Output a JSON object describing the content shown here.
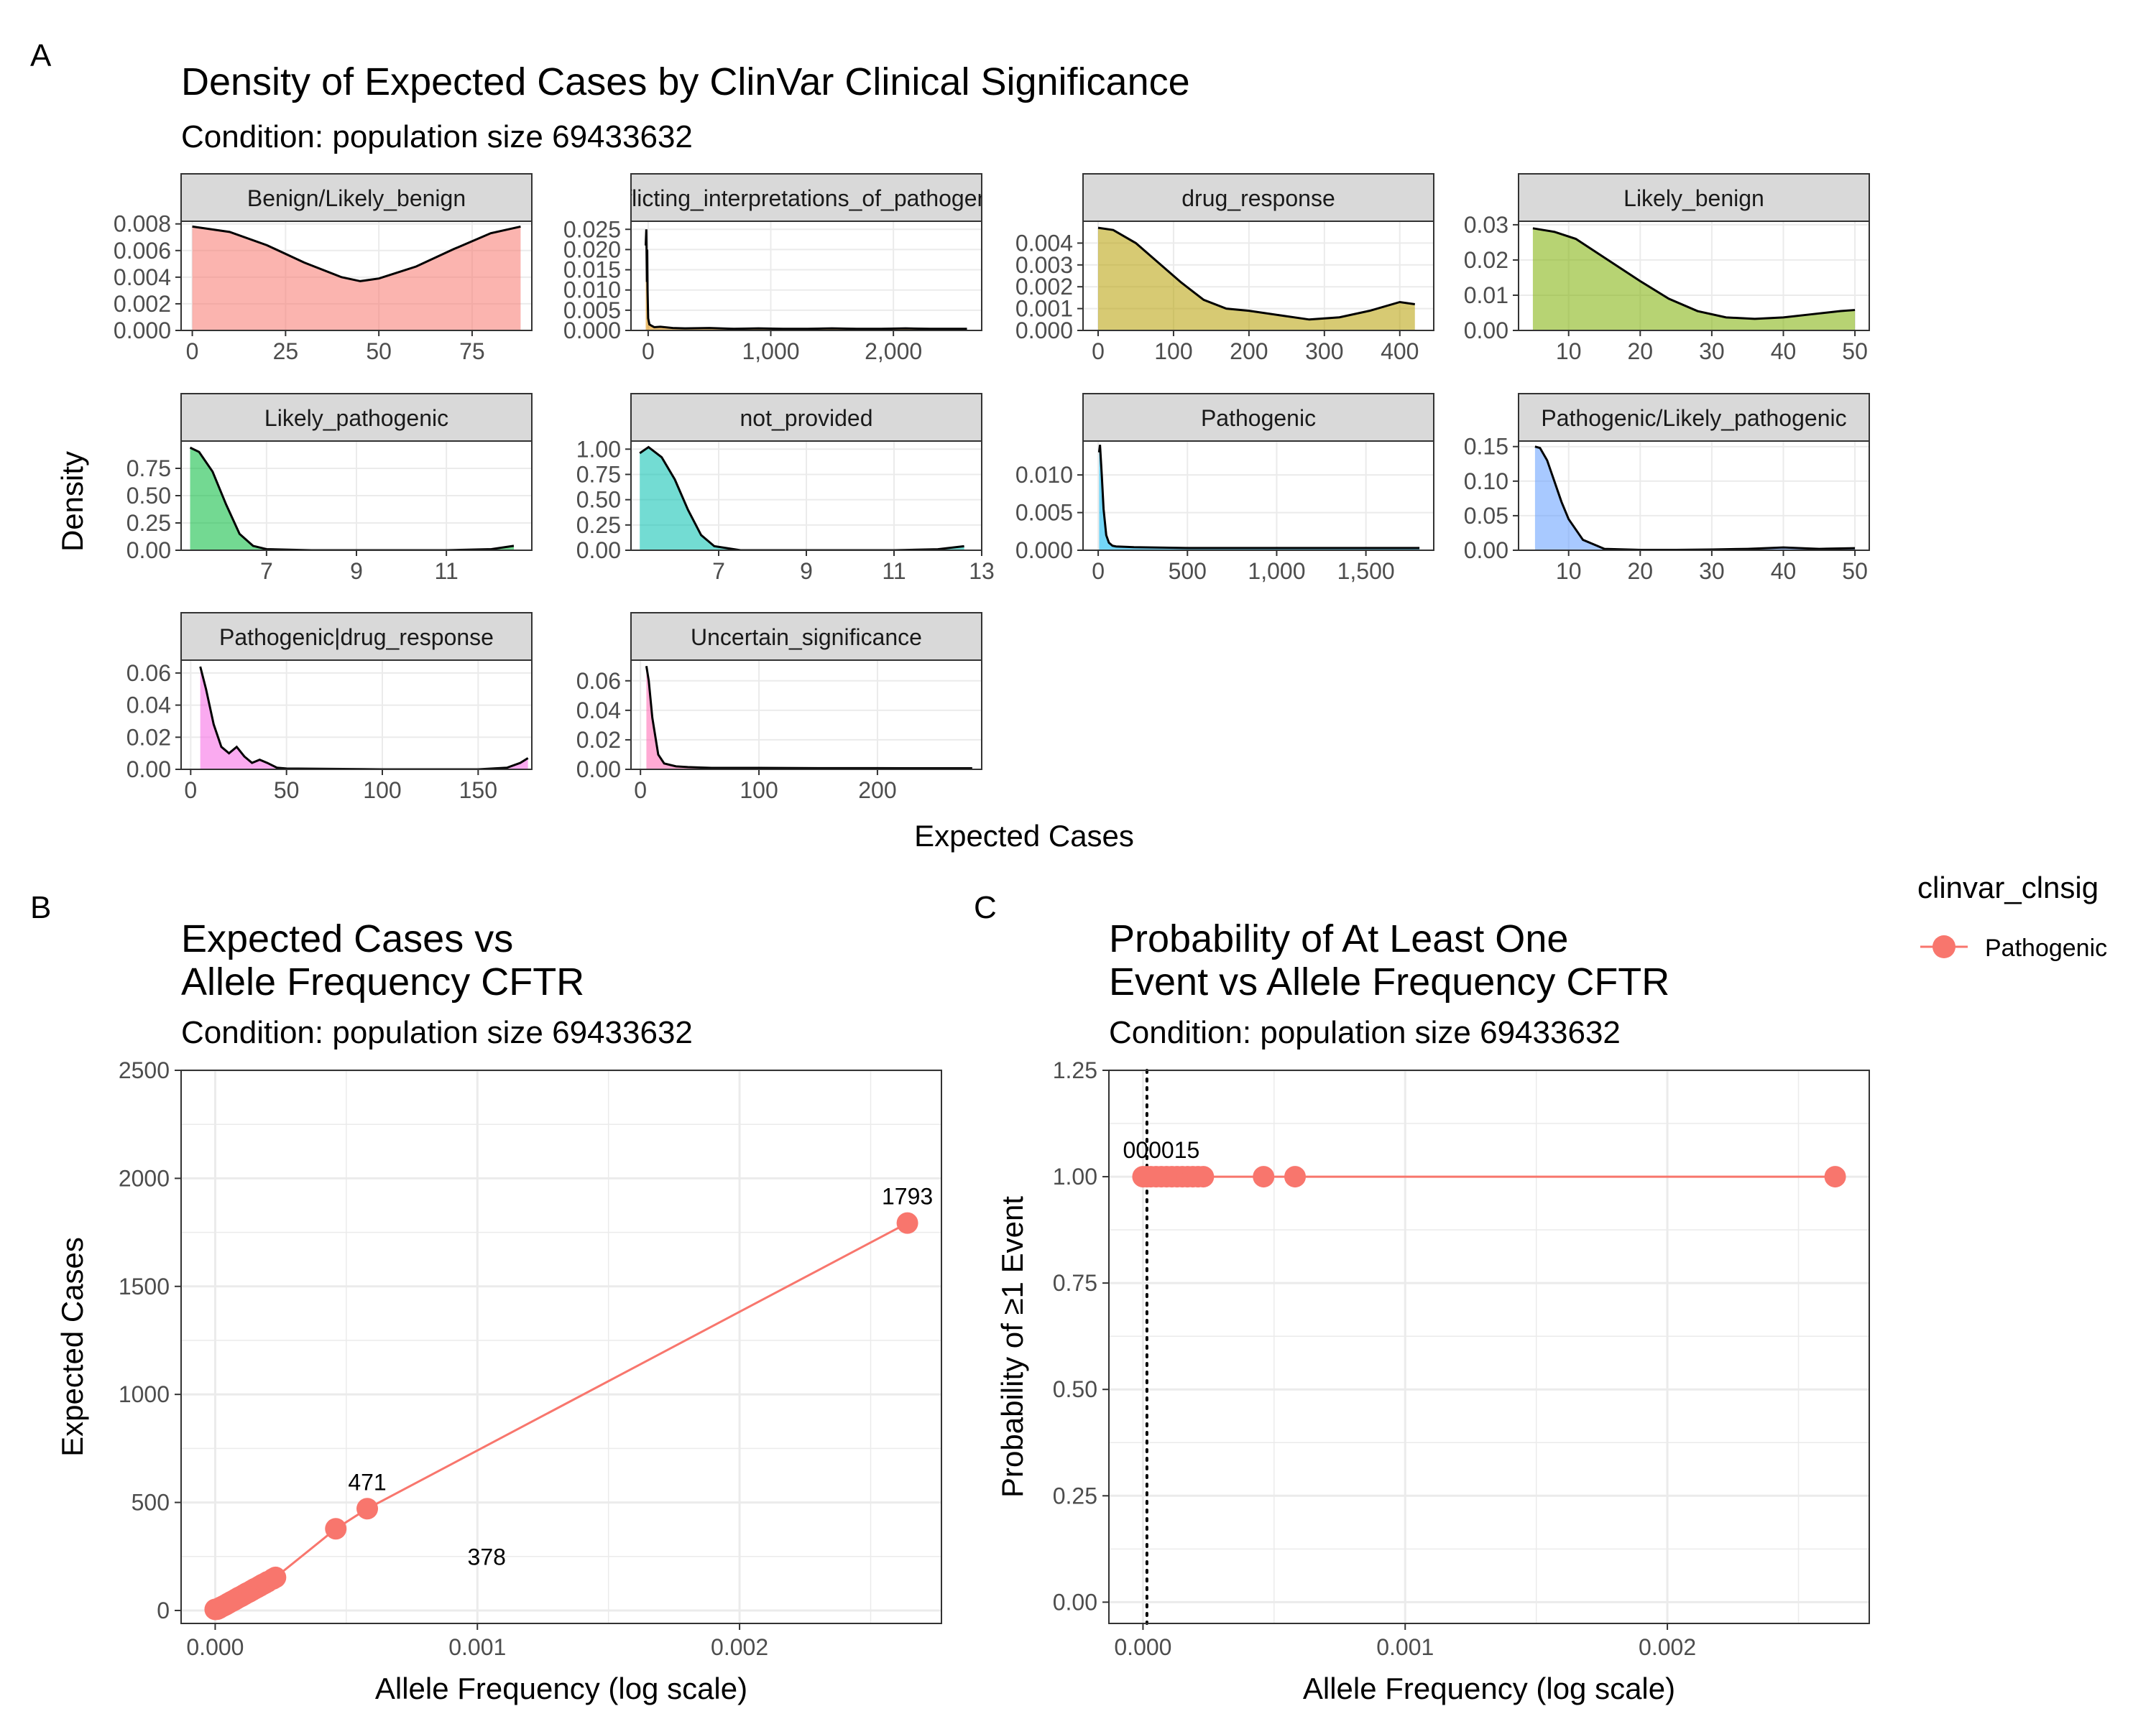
{
  "panel_a": {
    "tag": "A",
    "title": "Density of Expected Cases by ClinVar Clinical Significance",
    "subtitle": "Condition: population size 69433632",
    "xlabel": "Expected Cases",
    "ylabel": "Density"
  },
  "panel_b": {
    "tag": "B",
    "title_lines": [
      "Expected Cases vs",
      "Allele Frequency CFTR"
    ],
    "subtitle": "Condition: population size 69433632"
  },
  "panel_c": {
    "tag": "C",
    "title_lines": [
      "Probability of At Least One",
      "Event vs Allele Frequency CFTR"
    ],
    "subtitle": "Condition: population size 69433632"
  },
  "legend": {
    "title": "clinvar_clnsig",
    "items": [
      {
        "label": "Pathogenic",
        "color": "#F8766D"
      }
    ]
  },
  "colors": {
    "strip_bg": "#D9D9D9",
    "panel_border": "#333333",
    "grid": "#EBEBEB",
    "series": "#F8766D"
  },
  "chart_data": [
    {
      "type": "area",
      "facet_wrap": true,
      "facets": [
        {
          "strip": "Benign/Likely_benign",
          "fill": "#F8766D",
          "x": [
            0,
            10,
            20,
            30,
            40,
            45,
            50,
            60,
            70,
            80,
            88
          ],
          "y": [
            0.0078,
            0.0074,
            0.0064,
            0.0051,
            0.004,
            0.0037,
            0.0039,
            0.0048,
            0.0061,
            0.0073,
            0.0078
          ],
          "xlim": [
            -3,
            91
          ],
          "ylim": [
            0,
            0.0082
          ],
          "xticks": [
            0,
            25,
            50,
            75
          ],
          "xtick_labels": [
            "0",
            "25",
            "50",
            "75"
          ],
          "yticks": [
            0,
            0.002,
            0.004,
            0.006,
            0.008
          ],
          "ytick_labels": [
            "0.000",
            "0.002",
            "0.004",
            "0.006",
            "0.008"
          ]
        },
        {
          "strip": "Conflicting_interpretations_of_pathogenicity",
          "fill": "#DE8C00",
          "x": [
            -20,
            -15,
            -10,
            -8,
            -5,
            0,
            10,
            25,
            50,
            100,
            200,
            300,
            500,
            700,
            900,
            1100,
            1300,
            1500,
            1700,
            1900,
            2100,
            2300,
            2500,
            2600
          ],
          "y": [
            0.021,
            0.025,
            0.012,
            0.02,
            0.01,
            0.003,
            0.0015,
            0.0012,
            0.0008,
            0.0009,
            0.0006,
            0.0005,
            0.0006,
            0.0004,
            0.0005,
            0.0004,
            0.0004,
            0.0005,
            0.0004,
            0.0004,
            0.0005,
            0.0004,
            0.0004,
            0.0004
          ],
          "xlim": [
            -140,
            2720
          ],
          "ylim": [
            0,
            0.027
          ],
          "xticks": [
            0,
            1000,
            2000
          ],
          "xtick_labels": [
            "0",
            "1,000",
            "2,000"
          ],
          "yticks": [
            0,
            0.005,
            0.01,
            0.015,
            0.02,
            0.025
          ],
          "ytick_labels": [
            "0.000",
            "0.005",
            "0.010",
            "0.015",
            "0.020",
            "0.025"
          ]
        },
        {
          "strip": "drug_response",
          "fill": "#B79F00",
          "x": [
            0,
            20,
            50,
            80,
            110,
            140,
            170,
            200,
            240,
            280,
            320,
            360,
            400,
            420
          ],
          "y": [
            0.0047,
            0.0046,
            0.004,
            0.0031,
            0.0022,
            0.0014,
            0.001,
            0.0009,
            0.0007,
            0.0005,
            0.0006,
            0.0009,
            0.0013,
            0.0012
          ],
          "xlim": [
            -20,
            445
          ],
          "ylim": [
            0,
            0.005
          ],
          "xticks": [
            0,
            100,
            200,
            300,
            400
          ],
          "xtick_labels": [
            "0",
            "100",
            "200",
            "300",
            "400"
          ],
          "yticks": [
            0,
            0.001,
            0.002,
            0.003,
            0.004
          ],
          "ytick_labels": [
            "0.000",
            "0.001",
            "0.002",
            "0.003",
            "0.004"
          ]
        },
        {
          "strip": "Likely_benign",
          "fill": "#7CAE00",
          "x": [
            5,
            8,
            11,
            14,
            17,
            20,
            24,
            28,
            32,
            36,
            40,
            44,
            48,
            50
          ],
          "y": [
            0.029,
            0.028,
            0.026,
            0.022,
            0.018,
            0.014,
            0.009,
            0.0055,
            0.0037,
            0.0033,
            0.0037,
            0.0046,
            0.0055,
            0.0058
          ],
          "xlim": [
            3,
            52
          ],
          "ylim": [
            0,
            0.031
          ],
          "xticks": [
            10,
            20,
            30,
            40,
            50
          ],
          "xtick_labels": [
            "10",
            "20",
            "30",
            "40",
            "50"
          ],
          "yticks": [
            0,
            0.01,
            0.02,
            0.03
          ],
          "ytick_labels": [
            "0.00",
            "0.01",
            "0.02",
            "0.03"
          ]
        },
        {
          "strip": "Likely_pathogenic",
          "fill": "#00BA38",
          "x": [
            5.3,
            5.5,
            5.8,
            6.1,
            6.4,
            6.7,
            7.0,
            8.0,
            9.0,
            10.0,
            11.0,
            12.0,
            12.5
          ],
          "y": [
            0.94,
            0.9,
            0.72,
            0.42,
            0.15,
            0.04,
            0.01,
            0.0,
            0.0,
            0.0,
            0.0,
            0.01,
            0.04
          ],
          "xlim": [
            5.1,
            12.9
          ],
          "ylim": [
            0,
            1.0
          ],
          "xticks": [
            7,
            9,
            11
          ],
          "xtick_labels": [
            "7",
            "9",
            "11"
          ],
          "yticks": [
            0,
            0.25,
            0.5,
            0.75
          ],
          "ytick_labels": [
            "0.00",
            "0.25",
            "0.50",
            "0.75"
          ]
        },
        {
          "strip": "not_provided",
          "fill": "#00C0AF",
          "x": [
            5.2,
            5.4,
            5.7,
            6.0,
            6.3,
            6.6,
            6.9,
            7.5,
            9.0,
            11.0,
            12.0,
            12.6
          ],
          "y": [
            0.96,
            1.02,
            0.92,
            0.7,
            0.4,
            0.15,
            0.04,
            0.0,
            0.0,
            0.0,
            0.01,
            0.04
          ],
          "xlim": [
            5.0,
            13.0
          ],
          "ylim": [
            0,
            1.08
          ],
          "xticks": [
            7,
            9,
            11,
            13
          ],
          "xtick_labels": [
            "7",
            "9",
            "11",
            "13"
          ],
          "yticks": [
            0,
            0.25,
            0.5,
            0.75,
            1.0
          ],
          "ytick_labels": [
            "0.00",
            "0.25",
            "0.50",
            "0.75",
            "1.00"
          ]
        },
        {
          "strip": "Pathogenic",
          "fill": "#00B4F0",
          "x": [
            5,
            10,
            20,
            30,
            45,
            60,
            80,
            100,
            200,
            500,
            1000,
            1500,
            1800
          ],
          "y": [
            0.013,
            0.014,
            0.01,
            0.0055,
            0.002,
            0.001,
            0.0006,
            0.0005,
            0.0004,
            0.0003,
            0.0003,
            0.0003,
            0.0003
          ],
          "xlim": [
            -85,
            1880
          ],
          "ylim": [
            0,
            0.0145
          ],
          "xticks": [
            0,
            500,
            1000,
            1500
          ],
          "xtick_labels": [
            "0",
            "500",
            "1,000",
            "1,500"
          ],
          "yticks": [
            0,
            0.005,
            0.01
          ],
          "ytick_labels": [
            "0.000",
            "0.005",
            "0.010"
          ]
        },
        {
          "strip": "Pathogenic/Likely_pathogenic",
          "fill": "#619CFF",
          "x": [
            5.3,
            6,
            7,
            8,
            9,
            10,
            12,
            15,
            20,
            25,
            30,
            35,
            40,
            45,
            50
          ],
          "y": [
            0.15,
            0.148,
            0.13,
            0.1,
            0.07,
            0.045,
            0.015,
            0.002,
            0.0005,
            0.0005,
            0.001,
            0.002,
            0.004,
            0.002,
            0.003
          ],
          "xlim": [
            3,
            52
          ],
          "ylim": [
            0,
            0.158
          ],
          "xticks": [
            10,
            20,
            30,
            40,
            50
          ],
          "xtick_labels": [
            "10",
            "20",
            "30",
            "40",
            "50"
          ],
          "yticks": [
            0,
            0.05,
            0.1,
            0.15
          ],
          "ytick_labels": [
            "0.00",
            "0.05",
            "0.10",
            "0.15"
          ]
        },
        {
          "strip": "Pathogenic|drug_response",
          "fill": "#F564E3",
          "x": [
            5,
            8,
            12,
            16,
            20,
            24,
            28,
            32,
            36,
            40,
            45,
            50,
            100,
            150,
            165,
            172,
            176
          ],
          "y": [
            0.064,
            0.05,
            0.028,
            0.014,
            0.01,
            0.014,
            0.008,
            0.004,
            0.006,
            0.004,
            0.001,
            0.0005,
            0.0,
            0.0,
            0.001,
            0.004,
            0.007
          ],
          "xlim": [
            -5,
            178
          ],
          "ylim": [
            0,
            0.068
          ],
          "xticks": [
            0,
            50,
            100,
            150
          ],
          "xtick_labels": [
            "0",
            "50",
            "100",
            "150"
          ],
          "yticks": [
            0,
            0.02,
            0.04,
            0.06
          ],
          "ytick_labels": [
            "0.00",
            "0.02",
            "0.04",
            "0.06"
          ]
        },
        {
          "strip": "Uncertain_significance",
          "fill": "#FF64B0",
          "x": [
            5,
            7,
            10,
            15,
            20,
            30,
            40,
            60,
            100,
            150,
            200,
            250,
            280
          ],
          "y": [
            0.07,
            0.06,
            0.035,
            0.01,
            0.004,
            0.002,
            0.0015,
            0.001,
            0.001,
            0.0008,
            0.0008,
            0.0007,
            0.0007
          ],
          "xlim": [
            -8,
            288
          ],
          "ylim": [
            0,
            0.074
          ],
          "xticks": [
            0,
            100,
            200
          ],
          "xtick_labels": [
            "0",
            "100",
            "200"
          ],
          "yticks": [
            0,
            0.02,
            0.04,
            0.06
          ],
          "ytick_labels": [
            "0.00",
            "0.02",
            "0.04",
            "0.06"
          ]
        }
      ]
    },
    {
      "type": "line",
      "series": [
        {
          "name": "Pathogenic",
          "color": "#F8766D",
          "x": [
            0.0,
            8e-06,
            1.5e-05,
            2e-05,
            3e-05,
            4e-05,
            5e-05,
            6e-05,
            7e-05,
            8e-05,
            9e-05,
            0.0001,
            0.00011,
            0.00012,
            0.00013,
            0.00014,
            0.00015,
            0.00016,
            0.00017,
            0.00018,
            0.00019,
            0.0002,
            0.00022,
            0.00023,
            0.00046,
            0.00058,
            0.00264
          ],
          "y": [
            5,
            6,
            10,
            14,
            20,
            26,
            33,
            40,
            46,
            53,
            60,
            66,
            73,
            80,
            86,
            93,
            100,
            106,
            113,
            120,
            126,
            133,
            146,
            153,
            378,
            471,
            1793
          ]
        }
      ],
      "labels": [
        {
          "text": "1793",
          "x": 0.00264,
          "y": 1793
        },
        {
          "text": "471",
          "x": 0.00058,
          "y": 471
        },
        {
          "text": "378",
          "x": 0.00046,
          "y": 378
        }
      ],
      "xlabel": "Allele Frequency (log scale)",
      "ylabel": "Expected Cases",
      "xlim": [
        -0.00013,
        0.00277
      ],
      "ylim": [
        -60,
        2500
      ],
      "xticks": [
        0,
        0.001,
        0.002
      ],
      "xtick_labels": [
        "0.000",
        "0.001",
        "0.002"
      ],
      "yticks": [
        0,
        500,
        1000,
        1500,
        2000,
        2500
      ],
      "ytick_labels": [
        "0",
        "500",
        "1000",
        "1500",
        "2000",
        "2500"
      ],
      "grid": true
    },
    {
      "type": "line",
      "series": [
        {
          "name": "Pathogenic",
          "color": "#F8766D",
          "x": [
            0.0,
            1.5e-05,
            3e-05,
            5e-05,
            7e-05,
            9e-05,
            0.00011,
            0.00013,
            0.00015,
            0.00017,
            0.00019,
            0.00021,
            0.00023,
            0.00046,
            0.00058,
            0.00264
          ],
          "y": [
            1,
            1,
            1,
            1,
            1,
            1,
            1,
            1,
            1,
            1,
            1,
            1,
            1,
            1,
            1,
            1
          ]
        }
      ],
      "vline": {
        "x": 1.5e-05,
        "style": "dotted"
      },
      "labels": [
        {
          "text": "000015",
          "x": 1.5e-05,
          "y": 1.0
        }
      ],
      "xlabel": "Allele Frequency (log scale)",
      "ylabel": "Probability of ≥1 Event",
      "xlim": [
        -0.00013,
        0.00277
      ],
      "ylim": [
        -0.05,
        1.25
      ],
      "xticks": [
        0,
        0.001,
        0.002
      ],
      "xtick_labels": [
        "0.000",
        "0.001",
        "0.002"
      ],
      "yticks": [
        0,
        0.25,
        0.5,
        0.75,
        1.0,
        1.25
      ],
      "ytick_labels": [
        "0.00",
        "0.25",
        "0.50",
        "0.75",
        "1.00",
        "1.25"
      ],
      "grid": true
    }
  ]
}
